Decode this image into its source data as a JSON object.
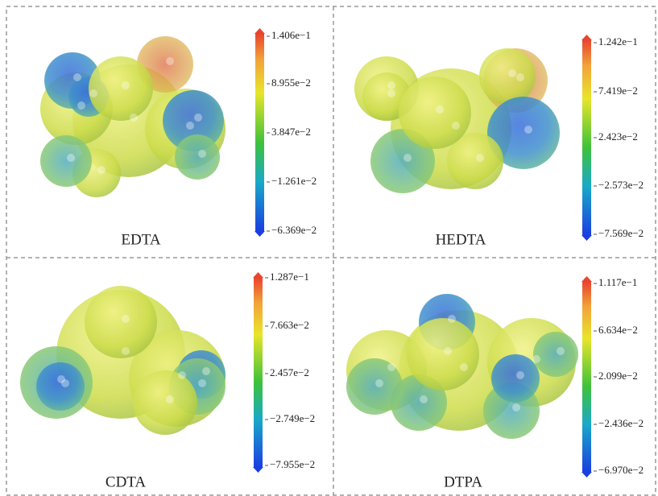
{
  "panels": [
    {
      "label": "EDTA",
      "ticks": [
        "1.406e−1",
        "8.955e−2",
        "3.847e−2",
        "−1.261e−2",
        "−6.369e−2"
      ]
    },
    {
      "label": "HEDTA",
      "ticks": [
        "1.242e−1",
        "7.419e−2",
        "2.423e−2",
        "−2.573e−2",
        "−7.569e−2"
      ]
    },
    {
      "label": "CDTA",
      "ticks": [
        "1.287e−1",
        "7.663e−2",
        "2.457e−2",
        "−2.749e−2",
        "−7.955e−2"
      ]
    },
    {
      "label": "DTPA",
      "ticks": [
        "1.117e−1",
        "6.634e−2",
        "2.099e−2",
        "−2.436e−2",
        "−6.970e−2"
      ]
    }
  ]
}
